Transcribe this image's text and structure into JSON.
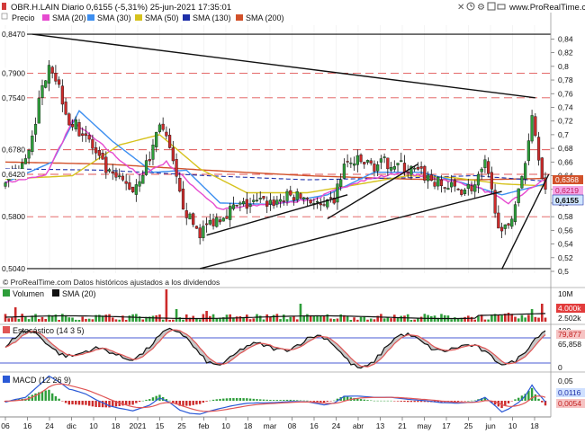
{
  "header": {
    "title": "OBR.H.LAIN Diario 0,6155 (-5,31%) 25-jun-2021 17:35:01",
    "site": "www.ProRealTime.com"
  },
  "colors": {
    "bg": "#ffffff",
    "up": "#2e9e3a",
    "down": "#cc2a2a",
    "sma20": "#e64bd0",
    "sma30": "#3d8ff0",
    "sma50": "#d6c21d",
    "sma130": "#1e2fa8",
    "sma200": "#d2512a",
    "hline": "#e05555",
    "trend": "#111111",
    "panel_border": "#b8b8b8"
  },
  "icons": [
    "ribbon-icon",
    "close-icon",
    "clock-icon",
    "gear-icon",
    "save-icon",
    "print-icon"
  ],
  "legend": {
    "precio": "Precio",
    "sma20": "SMA (20)",
    "sma30": "SMA (30)",
    "sma50": "SMA (50)",
    "sma130": "SMA (130)",
    "sma200": "SMA (200)"
  },
  "price_labels": {
    "hi": "0,8470",
    "a": "0,7900",
    "b": "0,7540",
    "c": "0,6780",
    "d": "0,6420",
    "e": "0,5800",
    "lo": "0,5040"
  },
  "y_ticks": [
    "0,84",
    "0,82",
    "0,8",
    "0,78",
    "0,76",
    "0,74",
    "0,72",
    "0,7",
    "0,68",
    "0,66",
    "0,64",
    "0,62",
    "0,6",
    "0,58",
    "0,56",
    "0,54",
    "0,52",
    "0,5"
  ],
  "price_badges": {
    "a": "0,6368",
    "b": "0,6219",
    "c": "0,6155"
  },
  "footer_note": "© ProRealTime.com Datos históricos ajustados a los dividendos",
  "volume": {
    "label_vol": "Volumen",
    "label_sma": "SMA (20)",
    "axis_top": "10M",
    "badge_a": "4.000k",
    "badge_b": "2.502k"
  },
  "stoch": {
    "label": "Estocástico (14 3 5)",
    "axis_top": "100",
    "axis_bottom": "0",
    "badge_a": "79,877",
    "badge_b": "65,858"
  },
  "macd": {
    "label": "MACD (12 26 9)",
    "axis_top": "0,05",
    "badge_a": "0,0116",
    "badge_b": "0,0054"
  },
  "x_labels": [
    "06",
    "16",
    "24",
    "dic",
    "10",
    "18",
    "2021",
    "15",
    "25",
    "feb",
    "10",
    "18",
    "mar",
    "08",
    "16",
    "24",
    "abr",
    "13",
    "21",
    "may",
    "17",
    "25",
    "jun",
    "10",
    "18"
  ],
  "chart_data": {
    "type": "candlestick",
    "ylim": [
      0.5,
      0.855
    ],
    "sessions": 162,
    "hlines": [
      0.847,
      0.79,
      0.754,
      0.678,
      0.642,
      0.58,
      0.504
    ],
    "trendlines": [
      {
        "from": [
          8,
          0.847
        ],
        "to": [
          158,
          0.754
        ]
      },
      {
        "from": [
          60,
          0.553
        ],
        "to": [
          102,
          0.612
        ]
      },
      {
        "from": [
          58,
          0.504
        ],
        "to": [
          148,
          0.617
        ]
      },
      {
        "from": [
          96,
          0.577
        ],
        "to": [
          123,
          0.657
        ]
      },
      {
        "from": [
          148,
          0.503
        ],
        "to": [
          162,
          0.642
        ]
      }
    ],
    "close_keypoints": [
      [
        0,
        0.625
      ],
      [
        3,
        0.645
      ],
      [
        6,
        0.66
      ],
      [
        10,
        0.745
      ],
      [
        13,
        0.81
      ],
      [
        16,
        0.77
      ],
      [
        19,
        0.72
      ],
      [
        24,
        0.7
      ],
      [
        27,
        0.67
      ],
      [
        31,
        0.64
      ],
      [
        35,
        0.63
      ],
      [
        38,
        0.62
      ],
      [
        43,
        0.665
      ],
      [
        46,
        0.72
      ],
      [
        49,
        0.675
      ],
      [
        52,
        0.61
      ],
      [
        55,
        0.575
      ],
      [
        58,
        0.557
      ],
      [
        62,
        0.575
      ],
      [
        67,
        0.59
      ],
      [
        70,
        0.595
      ],
      [
        75,
        0.6
      ],
      [
        80,
        0.602
      ],
      [
        85,
        0.61
      ],
      [
        90,
        0.608
      ],
      [
        95,
        0.59
      ],
      [
        98,
        0.605
      ],
      [
        101,
        0.655
      ],
      [
        105,
        0.66
      ],
      [
        110,
        0.655
      ],
      [
        115,
        0.66
      ],
      [
        120,
        0.65
      ],
      [
        125,
        0.64
      ],
      [
        130,
        0.625
      ],
      [
        135,
        0.62
      ],
      [
        140,
        0.625
      ],
      [
        143,
        0.655
      ],
      [
        146,
        0.595
      ],
      [
        148,
        0.55
      ],
      [
        150,
        0.57
      ],
      [
        153,
        0.615
      ],
      [
        155,
        0.66
      ],
      [
        157,
        0.735
      ],
      [
        158,
        0.7
      ],
      [
        160,
        0.645
      ],
      [
        161,
        0.6155
      ]
    ],
    "sma_keypoints": {
      "sma20": [
        [
          0,
          0.63
        ],
        [
          12,
          0.64
        ],
        [
          20,
          0.72
        ],
        [
          30,
          0.68
        ],
        [
          40,
          0.64
        ],
        [
          48,
          0.66
        ],
        [
          56,
          0.625
        ],
        [
          64,
          0.59
        ],
        [
          80,
          0.6
        ],
        [
          92,
          0.605
        ],
        [
          104,
          0.63
        ],
        [
          118,
          0.645
        ],
        [
          130,
          0.635
        ],
        [
          140,
          0.625
        ],
        [
          150,
          0.6
        ],
        [
          161,
          0.635
        ]
      ],
      "sma30": [
        [
          0,
          0.63
        ],
        [
          14,
          0.66
        ],
        [
          22,
          0.735
        ],
        [
          32,
          0.69
        ],
        [
          44,
          0.645
        ],
        [
          54,
          0.648
        ],
        [
          64,
          0.6
        ],
        [
          80,
          0.598
        ],
        [
          96,
          0.612
        ],
        [
          110,
          0.645
        ],
        [
          124,
          0.645
        ],
        [
          136,
          0.63
        ],
        [
          148,
          0.612
        ],
        [
          161,
          0.628
        ]
      ],
      "sma50": [
        [
          0,
          0.635
        ],
        [
          20,
          0.64
        ],
        [
          34,
          0.685
        ],
        [
          46,
          0.7
        ],
        [
          58,
          0.65
        ],
        [
          72,
          0.615
        ],
        [
          90,
          0.615
        ],
        [
          106,
          0.628
        ],
        [
          120,
          0.64
        ],
        [
          134,
          0.637
        ],
        [
          148,
          0.628
        ],
        [
          161,
          0.625
        ]
      ],
      "sma130": [
        [
          0,
          0.65
        ],
        [
          30,
          0.648
        ],
        [
          60,
          0.64
        ],
        [
          90,
          0.634
        ],
        [
          120,
          0.637
        ],
        [
          140,
          0.64
        ],
        [
          161,
          0.632
        ]
      ],
      "sma200": [
        [
          0,
          0.66
        ],
        [
          30,
          0.657
        ],
        [
          60,
          0.648
        ],
        [
          90,
          0.64
        ],
        [
          120,
          0.635
        ],
        [
          140,
          0.634
        ],
        [
          161,
          0.636
        ]
      ]
    }
  }
}
